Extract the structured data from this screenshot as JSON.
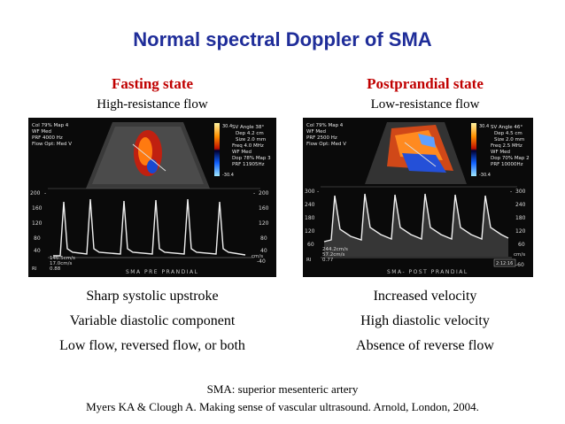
{
  "slide": {
    "title": "Normal spectral Doppler of SMA",
    "left": {
      "heading": "Fasting state",
      "subheading": "High-resistance flow",
      "image": {
        "caption": "SMA PRE PRANDIAL",
        "info_lines": [
          "Col 79%  Map 4",
          "WF Med",
          "PRF 4000 Hz",
          "Flow Opt: Med V"
        ],
        "settings_lines": [
          "SV Angle 38°",
          "Dep 4.2 cm",
          "Size 2.0 mm",
          "Freq 4.0 MHz",
          "WF Med",
          "Dop 78%  Map 3",
          "PRF 11905Hz"
        ],
        "color_scale_top": "30.4",
        "color_scale_bottom": "-30.4",
        "readout_lines": [
          "146.5cm/s",
          "17.0cm/s",
          "0.88"
        ],
        "ri_label": "RI",
        "unit_label": "cm/s",
        "scale_left": [
          "200",
          "160",
          "120",
          "80",
          "40"
        ],
        "scale_right": [
          "200",
          "160",
          "120",
          "80",
          "40"
        ],
        "scale_right_neg": "-40",
        "scale_sign_left": "-",
        "scale_sign_right": "-"
      },
      "bullets": [
        "Sharp systolic upstroke",
        "Variable diastolic component",
        "Low flow, reversed flow, or both"
      ]
    },
    "right": {
      "heading": "Postprandial state",
      "subheading": "Low-resistance flow",
      "image": {
        "caption": "SMA- POST PRANDIAL",
        "info_lines": [
          "Col 79%  Map 4",
          "WF Med",
          "PRF 2500 Hz",
          "Flow Opt: Med V"
        ],
        "settings_lines": [
          "SV Angle 46°",
          "Dep 4.5 cm",
          "Size 2.0 mm",
          "Freq 2.5 MHz",
          "WF Med",
          "Dop 70%  Map 2",
          "PRF 10000Hz"
        ],
        "color_scale_top": "30.4",
        "color_scale_bottom": "-30.4",
        "readout_lines": [
          "244.2cm/s",
          "57.2cm/s",
          "0.77"
        ],
        "ri_label": "RI",
        "unit_label": "cm/s",
        "scale_left": [
          "300",
          "240",
          "180",
          "120",
          "60"
        ],
        "scale_right": [
          "300",
          "240",
          "180",
          "120",
          "60"
        ],
        "scale_right_neg": "-60",
        "scale_sign_left": "-",
        "scale_sign_right": "-",
        "time_badge": "2:12:16"
      },
      "bullets": [
        "Increased velocity",
        "High diastolic velocity",
        "Absence of reverse flow"
      ]
    },
    "footer": {
      "abbreviation": "SMA: superior mesenteric artery",
      "reference": "Myers KA & Clough A. Making sense of vascular ultrasound. Arnold, London, 2004."
    }
  }
}
